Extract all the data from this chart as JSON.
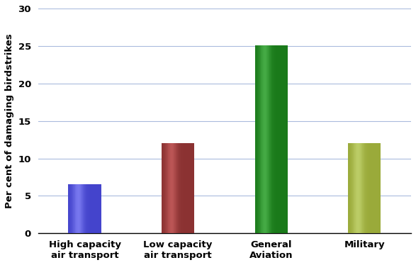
{
  "categories": [
    "High capacity\nair transport",
    "Low capacity\nair transport",
    "General\nAviation",
    "Military"
  ],
  "values": [
    6.6,
    12.0,
    25.1,
    12.0
  ],
  "bar_colors": [
    "#4444cc",
    "#8b3232",
    "#1a7a1a",
    "#9aaa3a"
  ],
  "bar_highlight_colors": [
    "#7777ee",
    "#bb5555",
    "#44aa44",
    "#bbcc66"
  ],
  "ylabel": "Per cent of damaging birdstrikes",
  "ylim": [
    0,
    30
  ],
  "yticks": [
    0,
    5,
    10,
    15,
    20,
    25,
    30
  ],
  "bar_width": 0.35,
  "background_color": "#ffffff",
  "grid_color": "#aabbdd",
  "tick_fontsize": 9.5,
  "label_fontsize": 9.5
}
